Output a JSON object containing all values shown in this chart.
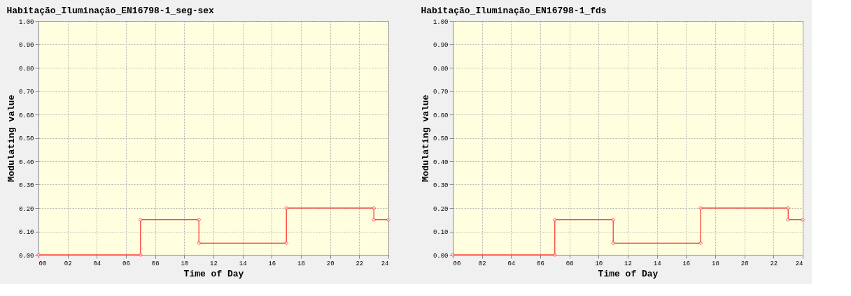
{
  "chart_data": [
    {
      "type": "line",
      "title": "Habitação_Iluminação_EN16798-1_seg-sex",
      "xlabel": "Time of Day",
      "ylabel": "Modulating value",
      "x": [
        0,
        7,
        7,
        11,
        11,
        17,
        17,
        23,
        23,
        24
      ],
      "series": [
        {
          "color": "#ff0000",
          "values": [
            0,
            0,
            0.15,
            0.15,
            0.05,
            0.05,
            0.2,
            0.2,
            0.15,
            0.15
          ]
        }
      ],
      "xlim": [
        0,
        24
      ],
      "ylim": [
        0,
        1
      ],
      "xticks": [
        {
          "value": 0,
          "label": "00"
        },
        {
          "value": 2,
          "label": "02"
        },
        {
          "value": 4,
          "label": "04"
        },
        {
          "value": 6,
          "label": "06"
        },
        {
          "value": 8,
          "label": "08"
        },
        10,
        12,
        14,
        16,
        18,
        20,
        22,
        24
      ],
      "yticks": [
        {
          "value": 0,
          "label": "0.00"
        },
        {
          "value": 0.1,
          "label": "0.10"
        },
        {
          "value": 0.2,
          "label": "0.20"
        },
        {
          "value": 0.3,
          "label": "0.30"
        },
        {
          "value": 0.4,
          "label": "0.40"
        },
        {
          "value": 0.5,
          "label": "0.50"
        },
        {
          "value": 0.6,
          "label": "0.60"
        },
        {
          "value": 0.7,
          "label": "0.70"
        },
        {
          "value": 0.8,
          "label": "0.80"
        },
        {
          "value": 0.9,
          "label": "0.90"
        },
        {
          "value": 1,
          "label": "1.00"
        }
      ],
      "grid": true,
      "marker": "diamond",
      "line_style": "solid"
    },
    {
      "type": "line",
      "title": "Habitação_Iluminação_EN16798-1_fds",
      "xlabel": "Time of Day",
      "ylabel": "Modulating value",
      "x": [
        0,
        7,
        7,
        11,
        11,
        17,
        17,
        23,
        23,
        24
      ],
      "series": [
        {
          "color": "#ff0000",
          "values": [
            0,
            0,
            0.15,
            0.15,
            0.05,
            0.05,
            0.2,
            0.2,
            0.15,
            0.15
          ]
        }
      ],
      "xlim": [
        0,
        24
      ],
      "ylim": [
        0,
        1
      ],
      "xticks": [
        {
          "value": 0,
          "label": "00"
        },
        {
          "value": 2,
          "label": "02"
        },
        {
          "value": 4,
          "label": "04"
        },
        {
          "value": 6,
          "label": "06"
        },
        {
          "value": 8,
          "label": "08"
        },
        10,
        12,
        14,
        16,
        18,
        20,
        22,
        24
      ],
      "yticks": [
        {
          "value": 0,
          "label": "0.00"
        },
        {
          "value": 0.1,
          "label": "0.10"
        },
        {
          "value": 0.2,
          "label": "0.20"
        },
        {
          "value": 0.3,
          "label": "0.30"
        },
        {
          "value": 0.4,
          "label": "0.40"
        },
        {
          "value": 0.5,
          "label": "0.50"
        },
        {
          "value": 0.6,
          "label": "0.60"
        },
        {
          "value": 0.7,
          "label": "0.70"
        },
        {
          "value": 0.8,
          "label": "0.80"
        },
        {
          "value": 0.9,
          "label": "0.90"
        },
        {
          "value": 1,
          "label": "1.00"
        }
      ],
      "grid": true,
      "marker": "diamond",
      "line_style": "solid"
    }
  ]
}
